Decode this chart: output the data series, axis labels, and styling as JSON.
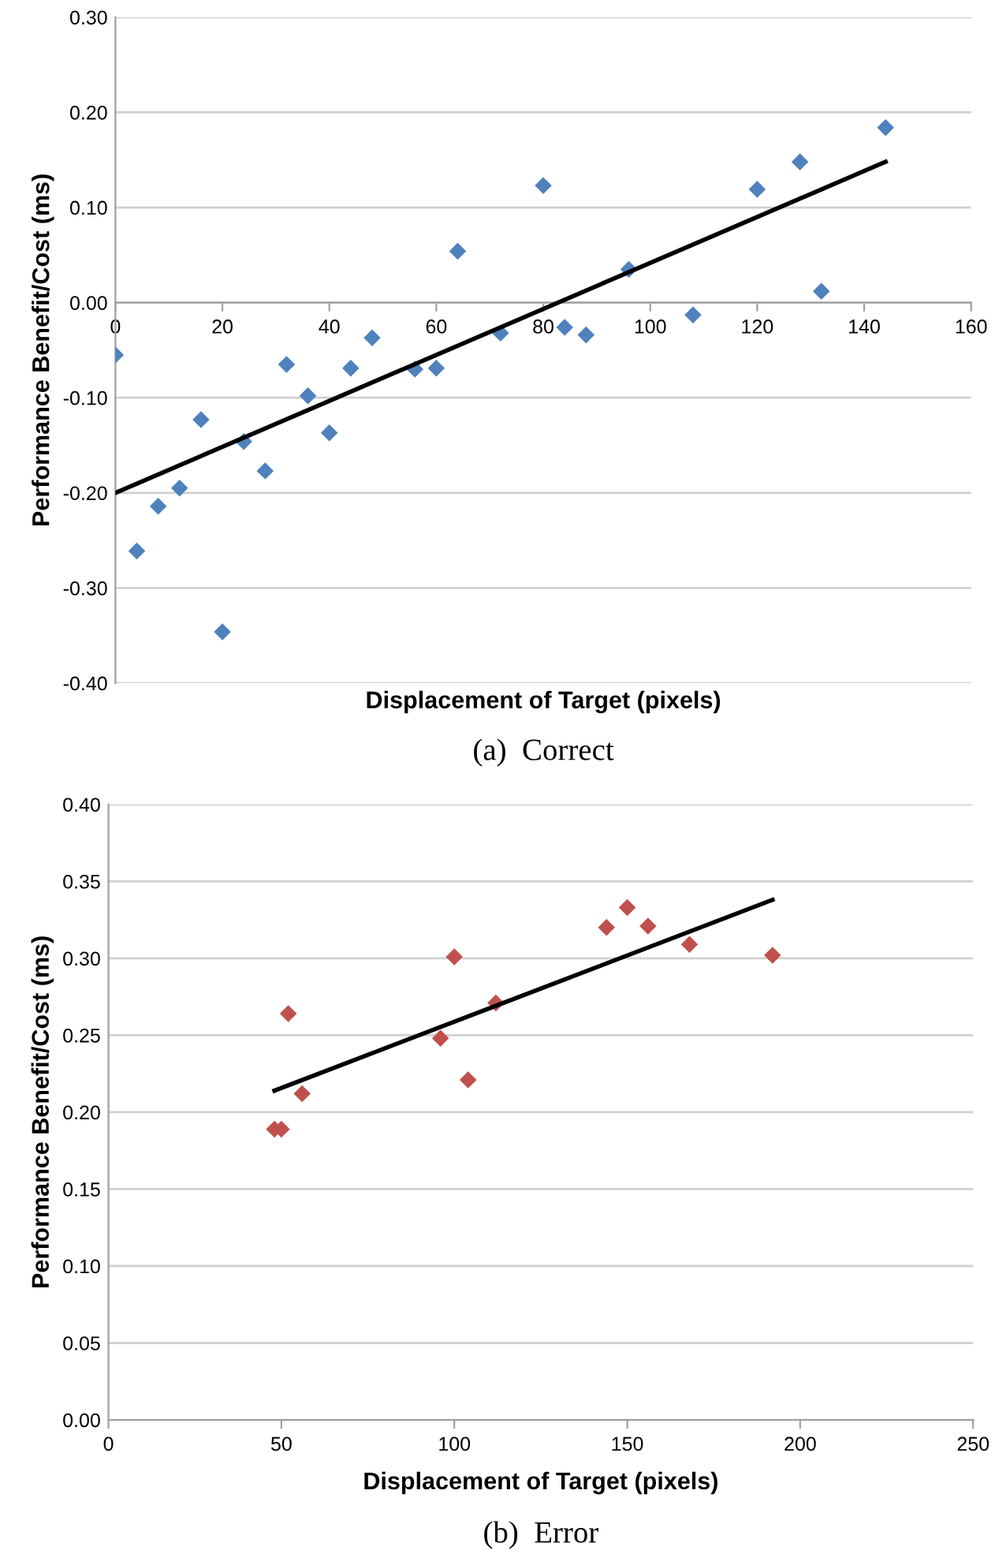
{
  "chart_data": [
    {
      "type": "scatter",
      "xlabel": "Displacement of Target (pixels)",
      "ylabel": "Performance Benefit/Cost (ms)",
      "annotations": [
        "(a)  Correct"
      ],
      "xlim": [
        0,
        160
      ],
      "xticks": [
        0,
        20,
        40,
        60,
        80,
        100,
        120,
        140,
        160
      ],
      "ylim": [
        -0.4,
        0.3
      ],
      "yticks": [
        {
          "value": -0.4,
          "label": "-0.40"
        },
        {
          "value": -0.3,
          "label": "-0.30"
        },
        {
          "value": -0.2,
          "label": "-0.20"
        },
        {
          "value": -0.1,
          "label": "-0.10"
        },
        {
          "value": 0,
          "label": "0.00"
        },
        {
          "value": 0.1,
          "label": "0.10"
        },
        {
          "value": 0.2,
          "label": "0.20"
        },
        {
          "value": 0.3,
          "label": "0.30"
        }
      ],
      "grid": "y",
      "marker": "diamond",
      "series": [
        {
          "color": "#4f81bd",
          "x": [
            0,
            4,
            8,
            12,
            16,
            20,
            24,
            28,
            32,
            36,
            40,
            44,
            48,
            56,
            60,
            64,
            72,
            80,
            84,
            88,
            96,
            108,
            120,
            128,
            132,
            144
          ],
          "values": [
            -0.055,
            -0.261,
            -0.214,
            -0.195,
            -0.123,
            -0.346,
            -0.146,
            -0.177,
            -0.065,
            -0.098,
            -0.137,
            -0.069,
            -0.037,
            -0.07,
            -0.069,
            0.054,
            -0.032,
            0.123,
            -0.026,
            -0.034,
            0.035,
            -0.013,
            0.119,
            0.148,
            0.012,
            0.184
          ]
        },
        {
          "type": "line",
          "color": "#000000",
          "marker": "none",
          "x": [
            0,
            144
          ],
          "values": [
            -0.2,
            0.148
          ]
        }
      ]
    },
    {
      "type": "scatter",
      "xlabel": "Displacement of Target (pixels)",
      "ylabel": "Performance Benefit/Cost (ms)",
      "annotations": [
        "(b)  Error"
      ],
      "xlim": [
        0,
        250
      ],
      "xticks": [
        0,
        50,
        100,
        150,
        200,
        250
      ],
      "ylim": [
        0,
        0.4
      ],
      "yticks": [
        {
          "value": 0,
          "label": "0.00"
        },
        {
          "value": 0.05,
          "label": "0.05"
        },
        {
          "value": 0.1,
          "label": "0.10"
        },
        {
          "value": 0.15,
          "label": "0.15"
        },
        {
          "value": 0.2,
          "label": "0.20"
        },
        {
          "value": 0.25,
          "label": "0.25"
        },
        {
          "value": 0.3,
          "label": "0.30"
        },
        {
          "value": 0.35,
          "label": "0.35"
        },
        {
          "value": 0.4,
          "label": "0.40"
        }
      ],
      "grid": "y",
      "marker": "diamond",
      "series": [
        {
          "color": "#c0504d",
          "x": [
            48,
            50,
            52,
            56,
            96,
            100,
            104,
            112,
            144,
            150,
            156,
            168,
            192
          ],
          "values": [
            0.189,
            0.189,
            0.264,
            0.212,
            0.248,
            0.301,
            0.221,
            0.271,
            0.32,
            0.333,
            0.321,
            0.309,
            0.302
          ]
        },
        {
          "type": "line",
          "color": "#000000",
          "marker": "none",
          "x": [
            48,
            192
          ],
          "values": [
            0.214,
            0.338
          ]
        }
      ]
    }
  ]
}
